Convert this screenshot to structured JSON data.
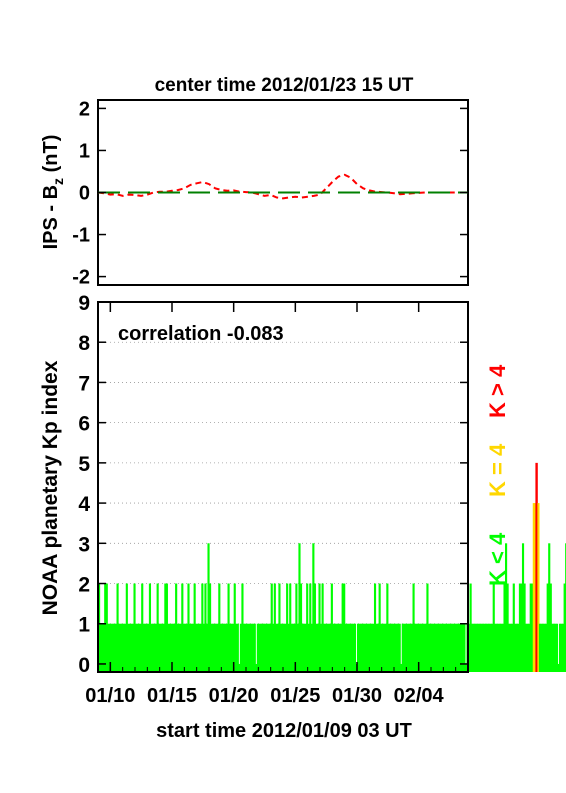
{
  "chart_data": [
    {
      "type": "line",
      "title": "center time 2012/01/23 15 UT",
      "ylabel": "IPS - B",
      "ylabel_sub": "z",
      "ylabel_unit": " (nT)",
      "ylim": [
        -2.2,
        2.2
      ],
      "yticks": [
        "2",
        "1",
        "0",
        "-1",
        "-2"
      ],
      "xlim": [
        0,
        30
      ],
      "grid": false,
      "series": [
        {
          "color": "#ff0000",
          "style": "dashed",
          "x": [
            0,
            0.5,
            1,
            1.5,
            2,
            2.5,
            3,
            3.5,
            4,
            4.5,
            5,
            5.5,
            6,
            6.5,
            7,
            7.5,
            8,
            8.5,
            9,
            9.5,
            10,
            10.5,
            11,
            11.5,
            12,
            12.5,
            13,
            13.5,
            14,
            14.5,
            15,
            15.5,
            16,
            16.5,
            17,
            17.5,
            18,
            18.5,
            19,
            19.5,
            20,
            20.5,
            21,
            21.5,
            22,
            22.5,
            23,
            23.5,
            24,
            24.5,
            25,
            25.5,
            26,
            26.5,
            27,
            27.5,
            28,
            28.5,
            29,
            29.5,
            30
          ],
          "values": [
            0.0,
            -0.02,
            -0.05,
            -0.04,
            -0.08,
            -0.05,
            -0.06,
            -0.08,
            -0.05,
            0.0,
            0.02,
            0.02,
            0.04,
            0.06,
            0.1,
            0.18,
            0.22,
            0.25,
            0.2,
            0.1,
            0.06,
            0.04,
            0.05,
            0.02,
            0.01,
            0.0,
            -0.04,
            -0.08,
            -0.06,
            -0.12,
            -0.14,
            -0.12,
            -0.1,
            -0.12,
            -0.1,
            -0.08,
            -0.05,
            0.1,
            0.25,
            0.38,
            0.42,
            0.35,
            0.2,
            0.1,
            0.05,
            0.02,
            0.01,
            0.0,
            -0.02,
            -0.04,
            -0.03,
            -0.02,
            -0.01,
            0.0,
            0.0,
            0.0,
            0.0,
            0.0,
            0.0,
            0.0,
            0.0
          ]
        },
        {
          "color": "#008000",
          "style": "long-dash",
          "x": [
            0,
            30
          ],
          "values": [
            0,
            0
          ]
        }
      ]
    },
    {
      "type": "bar",
      "ylabel": "NOAA planetary Kp index",
      "xlabel": "start time 2012/01/09 03 UT",
      "annotation": "correlation -0.083",
      "ylim": [
        -0.2,
        9
      ],
      "yticks": [
        "9",
        "8",
        "7",
        "6",
        "5",
        "4",
        "3",
        "2",
        "1",
        "0"
      ],
      "xlim": [
        0,
        30
      ],
      "xtick_values": [
        1,
        6,
        11,
        16,
        21,
        26
      ],
      "xticks": [
        "01/10",
        "01/15",
        "01/20",
        "01/25",
        "01/30",
        "02/04"
      ],
      "grid": true,
      "legend": [
        "K < 4",
        "K = 4",
        "K > 4"
      ],
      "legend_placement": "right",
      "colors": {
        "low": "#00ff00",
        "mid": "#ffd700",
        "high": "#ff0000"
      },
      "bin_days": 0.125,
      "kp": [
        2,
        1,
        1,
        1,
        2,
        2,
        1,
        1,
        1,
        1,
        1,
        1,
        2,
        1,
        1,
        1,
        1,
        1,
        2,
        1,
        1,
        1,
        1,
        2,
        1,
        1,
        1,
        1,
        2,
        1,
        1,
        1,
        1,
        2,
        1,
        1,
        1,
        1,
        2,
        1,
        1,
        1,
        1,
        2,
        2,
        1,
        1,
        1,
        1,
        1,
        2,
        1,
        1,
        1,
        2,
        1,
        1,
        1,
        2,
        1,
        1,
        1,
        2,
        1,
        1,
        1,
        1,
        2,
        1,
        2,
        1,
        3,
        2,
        1,
        1,
        1,
        1,
        1,
        2,
        1,
        1,
        1,
        1,
        1,
        2,
        1,
        1,
        1,
        2,
        1,
        1,
        0,
        1,
        2,
        1,
        1,
        1,
        1,
        1,
        1,
        1,
        1,
        0,
        1,
        1,
        1,
        1,
        1,
        1,
        1,
        1,
        1,
        2,
        1,
        2,
        1,
        1,
        2,
        1,
        1,
        1,
        1,
        2,
        1,
        2,
        1,
        1,
        1,
        2,
        1,
        3,
        2,
        1,
        1,
        1,
        2,
        1,
        2,
        1,
        3,
        2,
        1,
        1,
        2,
        1,
        2,
        1,
        1,
        1,
        1,
        1,
        2,
        1,
        1,
        1,
        1,
        1,
        1,
        2,
        2,
        1,
        1,
        1,
        1,
        1,
        1,
        1,
        0,
        1,
        1,
        1,
        1,
        1,
        1,
        1,
        1,
        1,
        1,
        1,
        2,
        1,
        1,
        2,
        1,
        1,
        1,
        1,
        2,
        1,
        1,
        1,
        1,
        1,
        1,
        1,
        1,
        0,
        1,
        1,
        1,
        1,
        1,
        1,
        1,
        2,
        1,
        1,
        1,
        1,
        1,
        1,
        1,
        1,
        2,
        1,
        1,
        1,
        1,
        1,
        1,
        1,
        1,
        1,
        1,
        1,
        1,
        1,
        1,
        1,
        1,
        1,
        1,
        1,
        1,
        1,
        1,
        1,
        1,
        0,
        1,
        1,
        2,
        1,
        1,
        1,
        1,
        1,
        1,
        1,
        1,
        1,
        1,
        1,
        1,
        1,
        1,
        2,
        1,
        1,
        1,
        1,
        1,
        1,
        2,
        3,
        2,
        1,
        1,
        1,
        2,
        1,
        1,
        1,
        2,
        2,
        3,
        2,
        1,
        1,
        1,
        2,
        2,
        4,
        4,
        5,
        4,
        1,
        1,
        1,
        1,
        1,
        2,
        3,
        2,
        1,
        1,
        1,
        1,
        0,
        1,
        1,
        1,
        2,
        3,
        2,
        1,
        1,
        5,
        4,
        4,
        2,
        2,
        2,
        1,
        1,
        1,
        1,
        0,
        1,
        2,
        1,
        1,
        2,
        1,
        2,
        1,
        1,
        3,
        2,
        1,
        1,
        2,
        1,
        2,
        1,
        1,
        1,
        2,
        1,
        1,
        1,
        2,
        1,
        1,
        2,
        1,
        1,
        2,
        1,
        1,
        2,
        2,
        1,
        1,
        2,
        1,
        1,
        1,
        1,
        2,
        1,
        1,
        1,
        2,
        1,
        1,
        2,
        1,
        1,
        1,
        1,
        2,
        1,
        1,
        1,
        1,
        2,
        1,
        1,
        1,
        1,
        2,
        1,
        1,
        1,
        1,
        1,
        1,
        2,
        1,
        1,
        1,
        2,
        1,
        1,
        1,
        1,
        0,
        1,
        1,
        1,
        2,
        1,
        1,
        3,
        3,
        2,
        1,
        1,
        1,
        1,
        1,
        0,
        1,
        1,
        1,
        2,
        1,
        1,
        1,
        1,
        2,
        2,
        1,
        2,
        1,
        1,
        1,
        1,
        2,
        1,
        1,
        1,
        1,
        1,
        2,
        1,
        1,
        1,
        2,
        2,
        1,
        1,
        1,
        2,
        1,
        1,
        2,
        1,
        1,
        1,
        2,
        1,
        1,
        1,
        2,
        1,
        1,
        2,
        1,
        1,
        1,
        1,
        1,
        2,
        1,
        1,
        3,
        2,
        1,
        1,
        1,
        2,
        1,
        1,
        1,
        1,
        2,
        1,
        1,
        1,
        1,
        2,
        1,
        1,
        1,
        1,
        1,
        1,
        1
      ]
    }
  ]
}
